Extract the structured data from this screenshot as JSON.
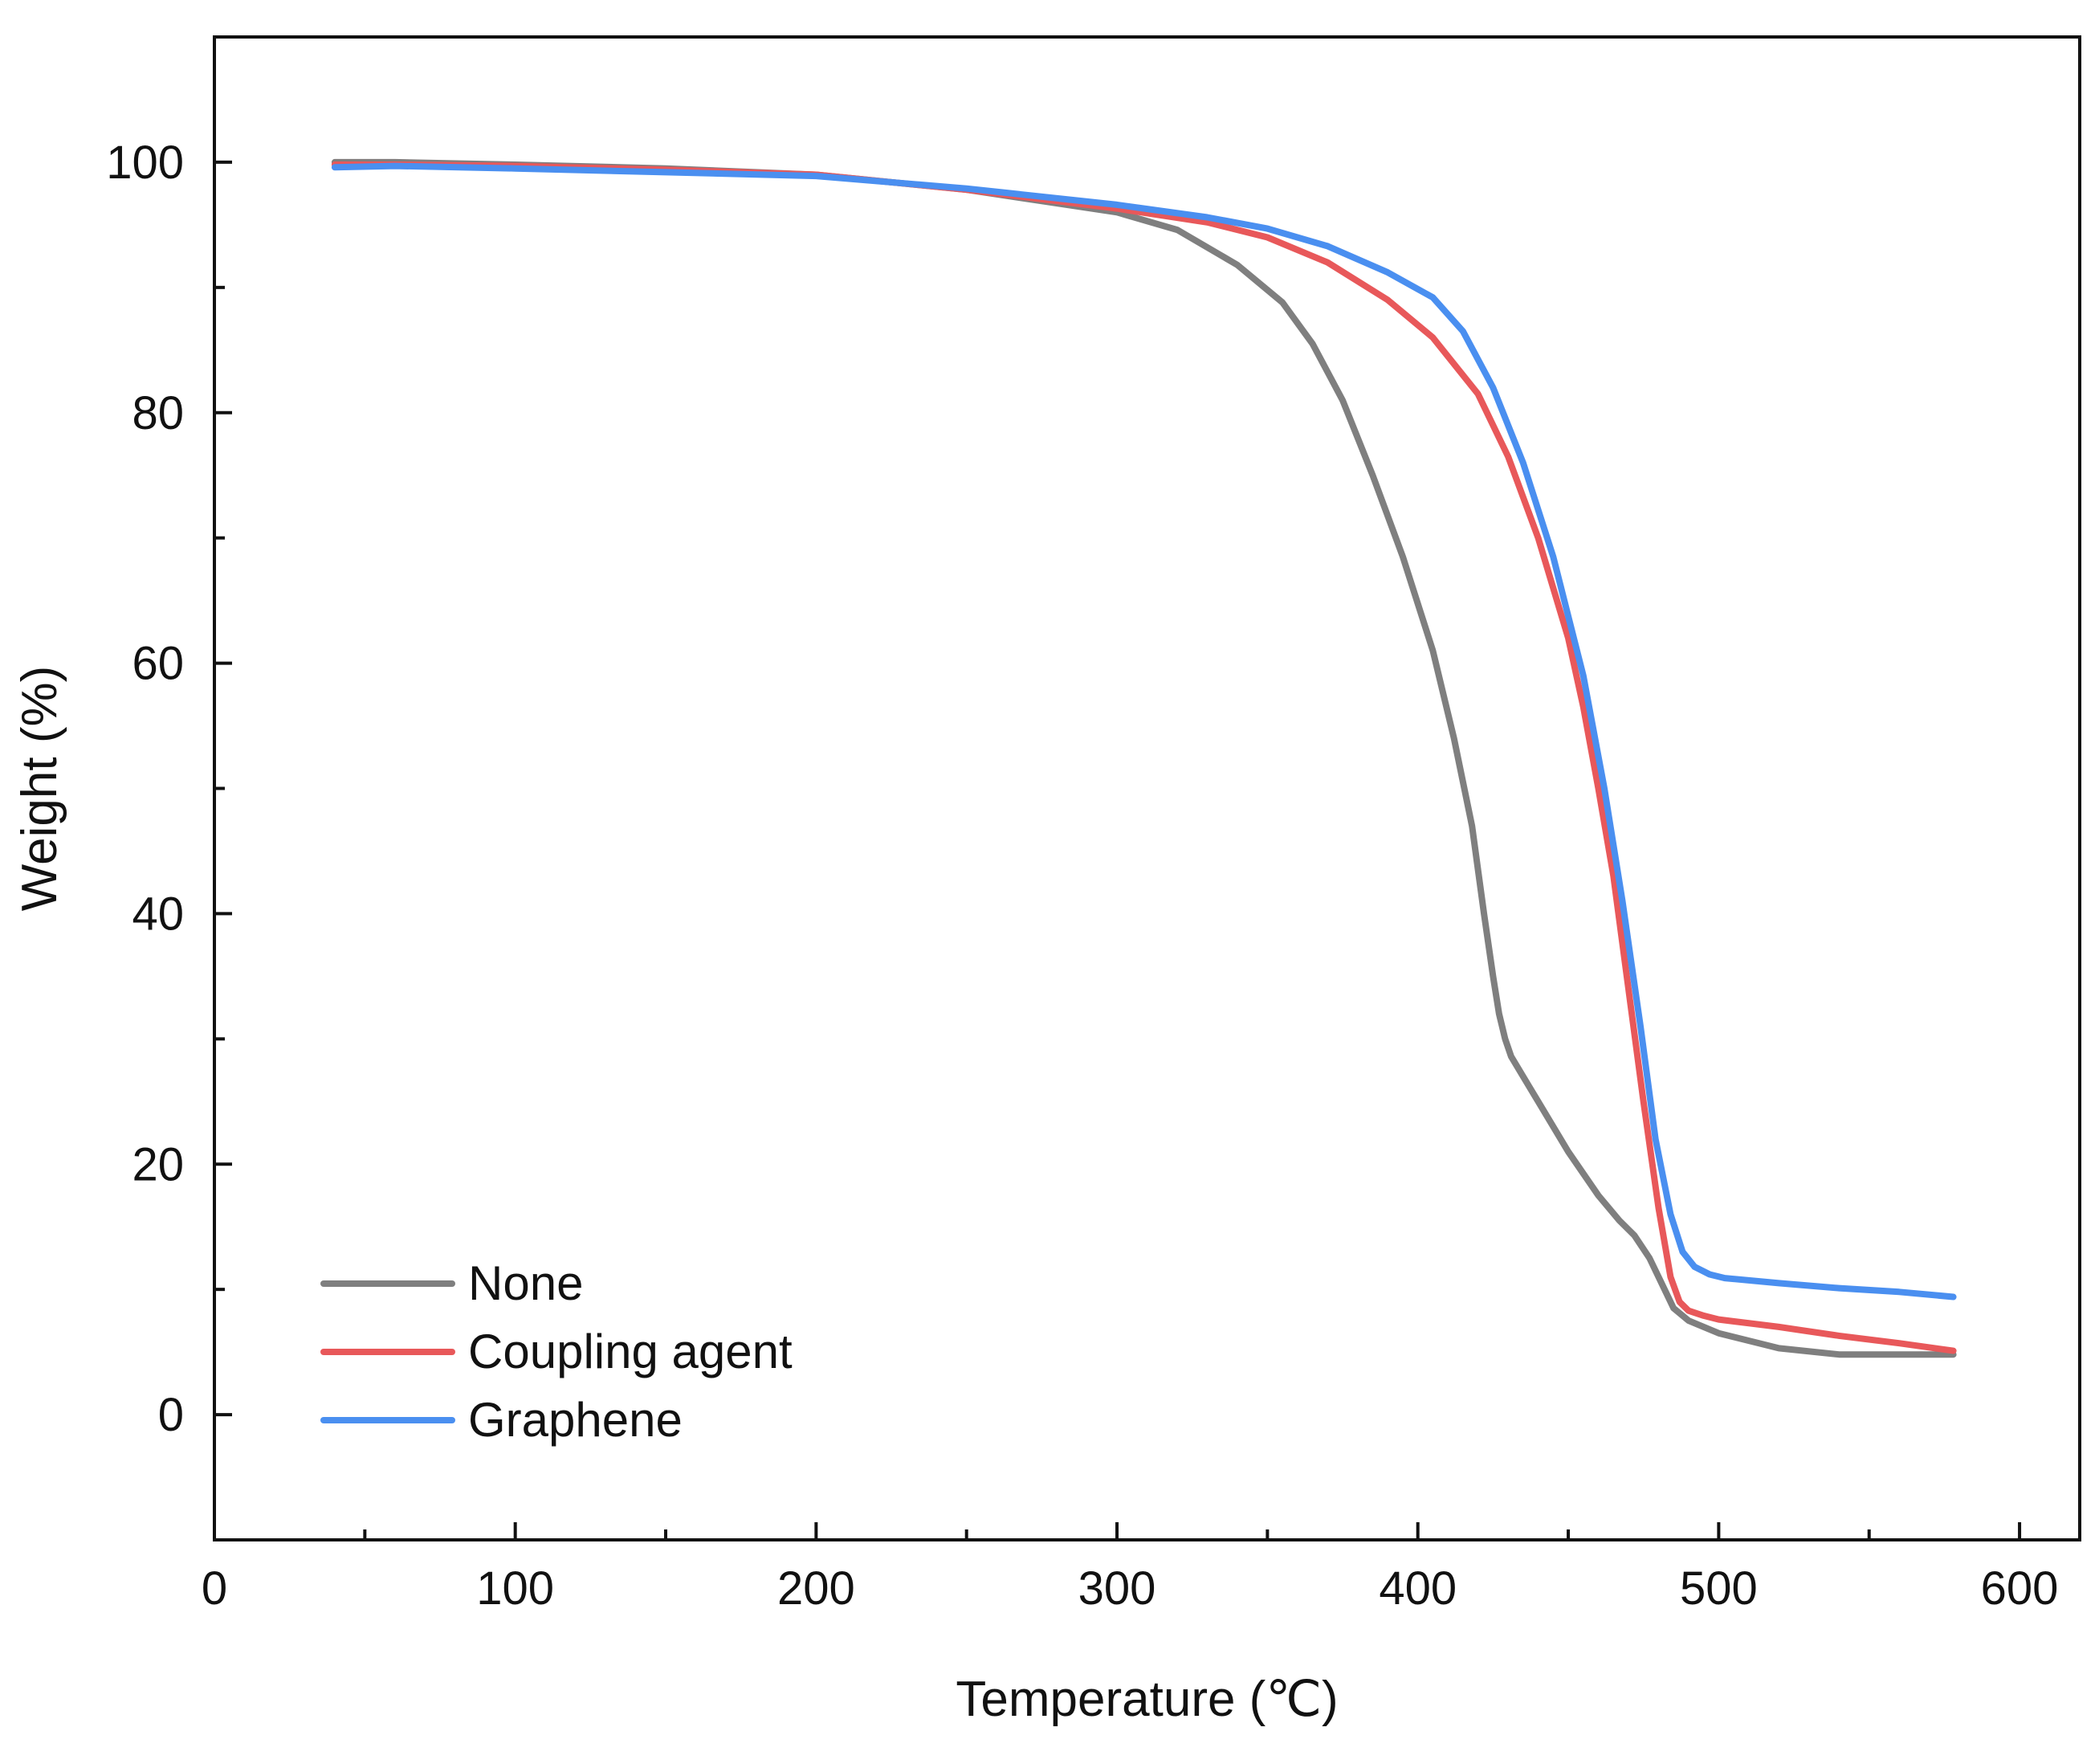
{
  "chart_data": {
    "type": "line",
    "title": "",
    "xlabel": "Temperature (℃)",
    "ylabel": "Weight (%)",
    "xlim": [
      0,
      620
    ],
    "ylim": [
      -10,
      110
    ],
    "xticks": [
      0,
      100,
      200,
      300,
      400,
      500,
      600
    ],
    "yticks": [
      0,
      20,
      40,
      60,
      80,
      100
    ],
    "xtick_labels": [
      "0",
      "100",
      "200",
      "300",
      "400",
      "500",
      "600"
    ],
    "ytick_labels": [
      "0",
      "20",
      "40",
      "60",
      "80",
      "100"
    ],
    "grid": false,
    "legend_position": "bottom-left",
    "series": [
      {
        "name": "None",
        "color": "#7f7f7f",
        "x": [
          40,
          60,
          100,
          150,
          200,
          250,
          300,
          320,
          340,
          355,
          365,
          375,
          385,
          395,
          405,
          412,
          418,
          422,
          425,
          427,
          429,
          431,
          435,
          440,
          450,
          460,
          467,
          472,
          477,
          481,
          485,
          490,
          500,
          520,
          540,
          560,
          578
        ],
        "y": [
          100,
          100,
          99.8,
          99.5,
          99,
          97.8,
          96,
          94.6,
          91.8,
          88.8,
          85.5,
          81,
          75,
          68.5,
          61,
          54,
          47,
          40,
          35,
          32,
          30,
          28.6,
          27,
          25,
          21,
          17.5,
          15.5,
          14.3,
          12.5,
          10.5,
          8.5,
          7.5,
          6.5,
          5.3,
          4.8,
          4.8,
          4.8
        ]
      },
      {
        "name": "Coupling agent",
        "color": "#e8585a",
        "x": [
          40,
          60,
          100,
          150,
          200,
          250,
          300,
          330,
          350,
          370,
          390,
          405,
          420,
          430,
          440,
          450,
          455,
          460,
          465,
          470,
          475,
          480,
          484,
          487,
          490,
          495,
          500,
          520,
          540,
          560,
          578
        ],
        "y": [
          99.8,
          99.8,
          99.7,
          99.4,
          99,
          97.8,
          96.3,
          95.2,
          94,
          92,
          89,
          86,
          81.5,
          76.5,
          70,
          62,
          56.5,
          50,
          43,
          34,
          25,
          16.5,
          11,
          9,
          8.3,
          7.9,
          7.6,
          7,
          6.3,
          5.7,
          5.1
        ]
      },
      {
        "name": "Graphene",
        "color": "#4a8ff0",
        "x": [
          40,
          60,
          100,
          150,
          200,
          250,
          300,
          330,
          350,
          370,
          390,
          405,
          415,
          425,
          435,
          445,
          455,
          462,
          468,
          474,
          479,
          484,
          488,
          492,
          497,
          502,
          520,
          540,
          560,
          578
        ],
        "y": [
          99.6,
          99.7,
          99.5,
          99.2,
          98.9,
          97.9,
          96.6,
          95.6,
          94.7,
          93.3,
          91.2,
          89.2,
          86.5,
          82,
          76,
          68.5,
          59,
          50,
          41,
          31,
          22,
          16,
          13,
          11.8,
          11.2,
          10.9,
          10.5,
          10.1,
          9.8,
          9.4
        ]
      }
    ]
  }
}
